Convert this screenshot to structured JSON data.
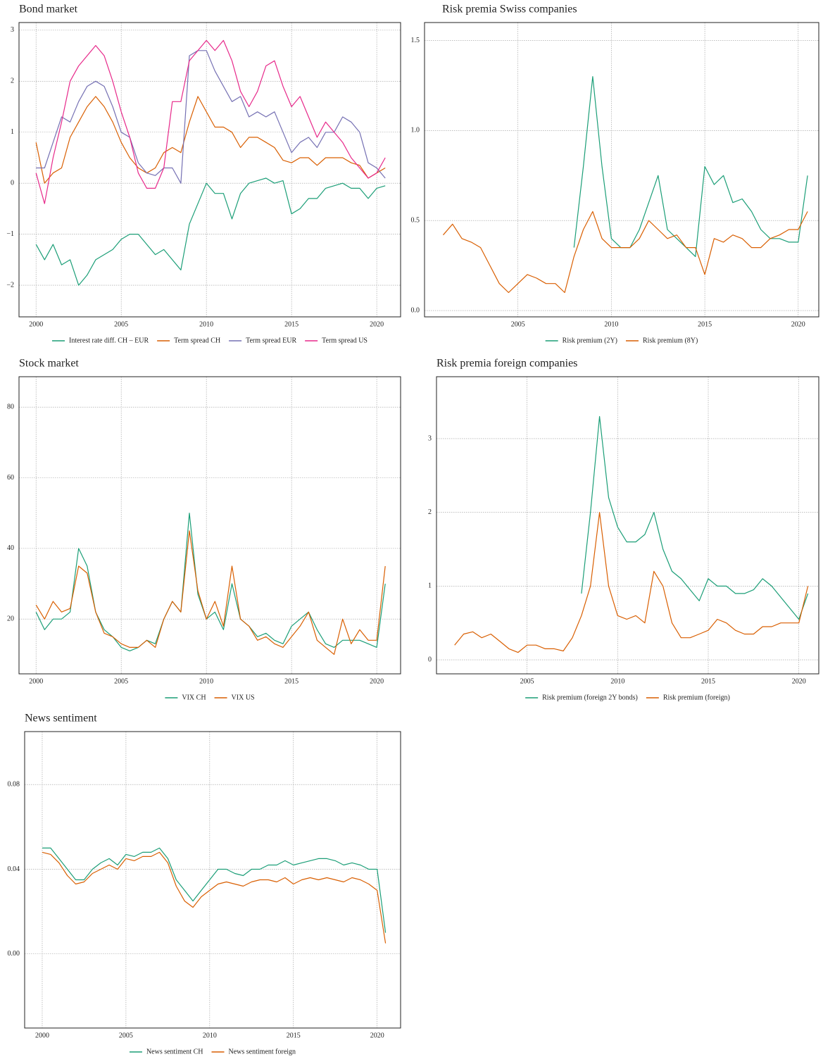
{
  "chart_data": [
    {
      "type": "line",
      "title": "Bond market",
      "x": [
        2000,
        2000.5,
        2001,
        2001.5,
        2002,
        2002.5,
        2003,
        2003.5,
        2004,
        2004.5,
        2005,
        2005.5,
        2006,
        2006.5,
        2007,
        2007.5,
        2008,
        2008.5,
        2009,
        2009.5,
        2010,
        2010.5,
        2011,
        2011.5,
        2012,
        2012.5,
        2013,
        2013.5,
        2014,
        2014.5,
        2015,
        2015.5,
        2016,
        2016.5,
        2017,
        2017.5,
        2018,
        2018.5,
        2019,
        2019.5,
        2020,
        2020.5
      ],
      "series": [
        {
          "name": "Interest rate diff. CH – EUR",
          "color": "#1b9e77",
          "values": [
            -1.2,
            -1.5,
            -1.2,
            -1.6,
            -1.5,
            -2.0,
            -1.8,
            -1.5,
            -1.4,
            -1.3,
            -1.1,
            -1.0,
            -1.0,
            -1.2,
            -1.4,
            -1.3,
            -1.5,
            -1.7,
            -0.8,
            -0.4,
            0.0,
            -0.2,
            -0.2,
            -0.7,
            -0.2,
            0.0,
            0.05,
            0.1,
            0.0,
            0.05,
            -0.6,
            -0.5,
            -0.3,
            -0.3,
            -0.1,
            -0.05,
            0.0,
            -0.1,
            -0.1,
            -0.3,
            -0.1,
            -0.05
          ]
        },
        {
          "name": "Term spread CH",
          "color": "#d95f02",
          "values": [
            0.8,
            0.0,
            0.2,
            0.3,
            0.9,
            1.2,
            1.5,
            1.7,
            1.5,
            1.2,
            0.8,
            0.5,
            0.3,
            0.2,
            0.3,
            0.6,
            0.7,
            0.6,
            1.2,
            1.7,
            1.4,
            1.1,
            1.1,
            1.0,
            0.7,
            0.9,
            0.9,
            0.8,
            0.7,
            0.45,
            0.4,
            0.5,
            0.5,
            0.35,
            0.5,
            0.5,
            0.5,
            0.4,
            0.35,
            0.1,
            0.2,
            0.3
          ]
        },
        {
          "name": "Term spread EUR",
          "color": "#7570b3",
          "values": [
            0.3,
            0.3,
            0.8,
            1.3,
            1.2,
            1.6,
            1.9,
            2.0,
            1.9,
            1.5,
            1.0,
            0.9,
            0.4,
            0.2,
            0.15,
            0.3,
            0.3,
            0.0,
            2.5,
            2.6,
            2.6,
            2.2,
            1.9,
            1.6,
            1.7,
            1.3,
            1.4,
            1.3,
            1.4,
            1.0,
            0.6,
            0.8,
            0.9,
            0.7,
            1.0,
            1.0,
            1.3,
            1.2,
            1.0,
            0.4,
            0.3,
            0.1
          ]
        },
        {
          "name": "Term spread US",
          "color": "#e7298a",
          "values": [
            0.2,
            -0.4,
            0.5,
            1.2,
            2.0,
            2.3,
            2.5,
            2.7,
            2.5,
            2.0,
            1.4,
            0.9,
            0.2,
            -0.1,
            -0.1,
            0.3,
            1.6,
            1.6,
            2.4,
            2.6,
            2.8,
            2.6,
            2.8,
            2.4,
            1.8,
            1.5,
            1.8,
            2.3,
            2.4,
            1.9,
            1.5,
            1.7,
            1.3,
            0.9,
            1.2,
            1.0,
            0.8,
            0.5,
            0.3,
            0.1,
            0.2,
            0.5
          ]
        }
      ],
      "xlim": [
        1999,
        2021.4
      ],
      "xticks": [
        2000,
        2005,
        2010,
        2015,
        2020
      ],
      "ylim": [
        -2.62,
        3.15
      ],
      "yticks": [
        {
          "value": -2,
          "label": "−2"
        },
        {
          "value": -1,
          "label": "−1"
        },
        0,
        1,
        2,
        3
      ],
      "grid": true,
      "legend": "bottom"
    },
    {
      "type": "line",
      "title": "Risk premia Swiss companies",
      "x": [
        2000,
        2000.5,
        2001,
        2001.5,
        2002,
        2002.5,
        2003,
        2003.5,
        2004,
        2004.5,
        2005,
        2005.5,
        2006,
        2006.5,
        2007,
        2007.5,
        2008,
        2008.5,
        2009,
        2009.5,
        2010,
        2010.5,
        2011,
        2011.5,
        2012,
        2012.5,
        2013,
        2013.5,
        2014,
        2014.5,
        2015,
        2015.5,
        2016,
        2016.5,
        2017,
        2017.5,
        2018,
        2018.5,
        2019,
        2019.5,
        2020,
        2020.5
      ],
      "series": [
        {
          "name": "Risk premium (2Y)",
          "color": "#1b9e77",
          "values": [
            null,
            null,
            null,
            null,
            null,
            null,
            null,
            null,
            null,
            null,
            null,
            null,
            null,
            null,
            null,
            null,
            0.35,
            0.8,
            1.3,
            0.8,
            0.4,
            0.35,
            0.35,
            0.45,
            0.6,
            0.75,
            0.45,
            0.4,
            0.35,
            0.3,
            0.8,
            0.7,
            0.75,
            0.6,
            0.62,
            0.55,
            0.45,
            0.4,
            0.4,
            0.38,
            0.38,
            0.75
          ]
        },
        {
          "name": "Risk premium (8Y)",
          "color": "#d95f02",
          "values": [
            null,
            null,
            0.42,
            0.48,
            0.4,
            0.38,
            0.35,
            0.25,
            0.15,
            0.1,
            0.15,
            0.2,
            0.18,
            0.15,
            0.15,
            0.1,
            0.3,
            0.45,
            0.55,
            0.4,
            0.35,
            0.35,
            0.35,
            0.4,
            0.5,
            0.45,
            0.4,
            0.42,
            0.35,
            0.35,
            0.2,
            0.4,
            0.38,
            0.42,
            0.4,
            0.35,
            0.35,
            0.4,
            0.42,
            0.45,
            0.45,
            0.55
          ]
        }
      ],
      "xlim": [
        2000,
        2021.1
      ],
      "xticks": [
        2005,
        2010,
        2015,
        2020
      ],
      "ylim": [
        -0.035,
        1.6
      ],
      "yticks": [
        {
          "value": 0,
          "label": "0.0"
        },
        0.5,
        {
          "value": 1,
          "label": "1.0"
        },
        1.5
      ],
      "grid": true,
      "legend": "bottom"
    },
    {
      "type": "line",
      "title": "Stock market",
      "x": [
        2000,
        2000.5,
        2001,
        2001.5,
        2002,
        2002.5,
        2003,
        2003.5,
        2004,
        2004.5,
        2005,
        2005.5,
        2006,
        2006.5,
        2007,
        2007.5,
        2008,
        2008.5,
        2009,
        2009.5,
        2010,
        2010.5,
        2011,
        2011.5,
        2012,
        2012.5,
        2013,
        2013.5,
        2014,
        2014.5,
        2015,
        2015.5,
        2016,
        2016.5,
        2017,
        2017.5,
        2018,
        2018.5,
        2019,
        2019.5,
        2020,
        2020.5
      ],
      "series": [
        {
          "name": "VIX CH",
          "color": "#1b9e77",
          "values": [
            22,
            17,
            20,
            20,
            22,
            40,
            35,
            22,
            17,
            15,
            12,
            11,
            12,
            14,
            13,
            20,
            25,
            22,
            50,
            27,
            20,
            22,
            17,
            30,
            20,
            18,
            15,
            16,
            14,
            13,
            18,
            20,
            22,
            17,
            13,
            12,
            14,
            14,
            14,
            13,
            12,
            30
          ]
        },
        {
          "name": "VIX US",
          "color": "#d95f02",
          "values": [
            24,
            20,
            25,
            22,
            23,
            35,
            33,
            22,
            16,
            15,
            13,
            12,
            12,
            14,
            12,
            20,
            25,
            22,
            45,
            28,
            20,
            25,
            18,
            35,
            20,
            18,
            14,
            15,
            13,
            12,
            15,
            18,
            22,
            14,
            12,
            10,
            20,
            13,
            17,
            14,
            14,
            35
          ]
        }
      ],
      "xlim": [
        1999,
        2021.4
      ],
      "xticks": [
        2000,
        2005,
        2010,
        2015,
        2020
      ],
      "ylim": [
        4.5,
        88.6
      ],
      "yticks": [
        20,
        40,
        60,
        80
      ],
      "grid": true,
      "legend": "bottom"
    },
    {
      "type": "line",
      "title": "Risk premia foreign companies",
      "x": [
        2000,
        2000.5,
        2001,
        2001.5,
        2002,
        2002.5,
        2003,
        2003.5,
        2004,
        2004.5,
        2005,
        2005.5,
        2006,
        2006.5,
        2007,
        2007.5,
        2008,
        2008.5,
        2009,
        2009.5,
        2010,
        2010.5,
        2011,
        2011.5,
        2012,
        2012.5,
        2013,
        2013.5,
        2014,
        2014.5,
        2015,
        2015.5,
        2016,
        2016.5,
        2017,
        2017.5,
        2018,
        2018.5,
        2019,
        2019.5,
        2020,
        2020.5
      ],
      "series": [
        {
          "name": "Risk premium (foreign 2Y bonds)",
          "color": "#1b9e77",
          "values": [
            null,
            null,
            null,
            null,
            null,
            null,
            null,
            null,
            null,
            null,
            null,
            null,
            null,
            null,
            null,
            null,
            0.9,
            2.0,
            3.3,
            2.2,
            1.8,
            1.6,
            1.6,
            1.7,
            2.0,
            1.5,
            1.2,
            1.1,
            0.95,
            0.8,
            1.1,
            1.0,
            1.0,
            0.9,
            0.9,
            0.95,
            1.1,
            1.0,
            0.85,
            0.7,
            0.55,
            0.9
          ]
        },
        {
          "name": "Risk premium (foreign)",
          "color": "#d95f02",
          "values": [
            null,
            null,
            0.2,
            0.35,
            0.38,
            0.3,
            0.35,
            0.25,
            0.15,
            0.1,
            0.2,
            0.2,
            0.15,
            0.15,
            0.12,
            0.3,
            0.6,
            1.0,
            2.0,
            1.0,
            0.6,
            0.55,
            0.6,
            0.5,
            1.2,
            1.0,
            0.5,
            0.3,
            0.3,
            0.35,
            0.4,
            0.55,
            0.5,
            0.4,
            0.35,
            0.35,
            0.45,
            0.45,
            0.5,
            0.5,
            0.5,
            1.0
          ]
        }
      ],
      "xlim": [
        2000,
        2021.1
      ],
      "xticks": [
        2005,
        2010,
        2015,
        2020
      ],
      "ylim": [
        -0.19,
        3.84
      ],
      "yticks": [
        0,
        1,
        2,
        3
      ],
      "grid": true,
      "legend": "bottom"
    },
    {
      "type": "line",
      "title": "News sentiment",
      "x": [
        2000,
        2000.5,
        2001,
        2001.5,
        2002,
        2002.5,
        2003,
        2003.5,
        2004,
        2004.5,
        2005,
        2005.5,
        2006,
        2006.5,
        2007,
        2007.5,
        2008,
        2008.5,
        2009,
        2009.5,
        2010,
        2010.5,
        2011,
        2011.5,
        2012,
        2012.5,
        2013,
        2013.5,
        2014,
        2014.5,
        2015,
        2015.5,
        2016,
        2016.5,
        2017,
        2017.5,
        2018,
        2018.5,
        2019,
        2019.5,
        2020,
        2020.5
      ],
      "series": [
        {
          "name": "News sentiment CH",
          "color": "#1b9e77",
          "values": [
            0.05,
            0.05,
            0.045,
            0.04,
            0.035,
            0.035,
            0.04,
            0.043,
            0.045,
            0.042,
            0.047,
            0.046,
            0.048,
            0.048,
            0.05,
            0.045,
            0.035,
            0.03,
            0.025,
            0.03,
            0.035,
            0.04,
            0.04,
            0.038,
            0.037,
            0.04,
            0.04,
            0.042,
            0.042,
            0.044,
            0.042,
            0.043,
            0.044,
            0.045,
            0.045,
            0.044,
            0.042,
            0.043,
            0.042,
            0.04,
            0.04,
            0.01
          ]
        },
        {
          "name": "News sentiment foreign",
          "color": "#d95f02",
          "values": [
            0.048,
            0.047,
            0.043,
            0.037,
            0.033,
            0.034,
            0.038,
            0.04,
            0.042,
            0.04,
            0.045,
            0.044,
            0.046,
            0.046,
            0.048,
            0.043,
            0.032,
            0.025,
            0.022,
            0.027,
            0.03,
            0.033,
            0.034,
            0.033,
            0.032,
            0.034,
            0.035,
            0.035,
            0.034,
            0.036,
            0.033,
            0.035,
            0.036,
            0.035,
            0.036,
            0.035,
            0.034,
            0.036,
            0.035,
            0.033,
            0.03,
            0.005
          ]
        }
      ],
      "xlim": [
        1998.95,
        2021.4
      ],
      "xticks": [
        2000,
        2005,
        2010,
        2015,
        2020
      ],
      "ylim": [
        -0.035,
        0.105
      ],
      "yticks": [
        {
          "value": 0,
          "label": "0.00"
        },
        0.04,
        0.08
      ],
      "grid": true,
      "legend": "bottom"
    }
  ]
}
